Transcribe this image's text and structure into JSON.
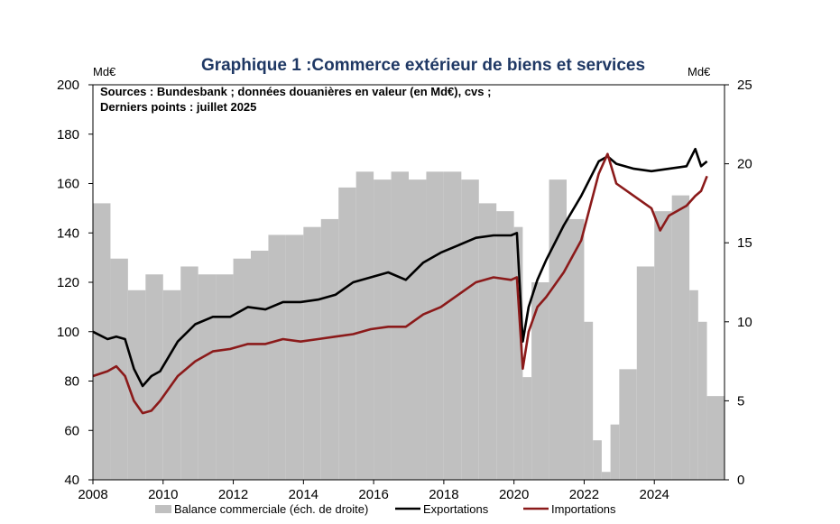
{
  "chart_data": {
    "type": "line",
    "title": "Graphique 1 :Commerce extérieur de biens et services",
    "notes": [
      "Sources : Bundesbank ; données douanières en valeur (en Md€), cvs ;",
      "Derniers points : juillet 2025"
    ],
    "ylabel_left": "Md€",
    "ylabel_right": "Md€",
    "ylim_left": [
      40,
      200
    ],
    "ylim_right": [
      0,
      25
    ],
    "yticks_left": [
      "200",
      "180",
      "160",
      "140",
      "120",
      "100",
      "80",
      "60",
      "40"
    ],
    "yticks_right": [
      "25",
      "20",
      "15",
      "10",
      "5",
      "0"
    ],
    "xticks": [
      "2008",
      "2010",
      "2012",
      "2014",
      "2016",
      "2018",
      "2020",
      "2022",
      "2024"
    ],
    "x_start": "2008-01",
    "x_end": "2025-07",
    "grid": false,
    "legend_position": "bottom",
    "colors": {
      "title": "#1f3864",
      "bars": "#c0c0c0",
      "exports": "#000000",
      "imports": "#8b1a1a"
    },
    "series": [
      {
        "name": "Balance commerciale (éch. de droite)",
        "kind": "bar",
        "axis": "right",
        "x": [
          "2008-01",
          "2008-07",
          "2009-01",
          "2009-07",
          "2010-01",
          "2010-07",
          "2011-01",
          "2011-07",
          "2012-01",
          "2012-07",
          "2013-01",
          "2013-07",
          "2014-01",
          "2014-07",
          "2015-01",
          "2015-07",
          "2016-01",
          "2016-07",
          "2017-01",
          "2017-07",
          "2018-01",
          "2018-07",
          "2019-01",
          "2019-07",
          "2020-01",
          "2020-04",
          "2020-07",
          "2021-01",
          "2021-07",
          "2022-01",
          "2022-04",
          "2022-07",
          "2022-10",
          "2023-01",
          "2023-07",
          "2024-01",
          "2024-07",
          "2025-01",
          "2025-04",
          "2025-07"
        ],
        "values": [
          17.5,
          14,
          12,
          13,
          12,
          13.5,
          13,
          13,
          14,
          14.5,
          15.5,
          15.5,
          16,
          16.5,
          18.5,
          19.5,
          19,
          19.5,
          19,
          19.5,
          19.5,
          19,
          17.5,
          17,
          16,
          6.5,
          12.5,
          19,
          16.5,
          10,
          2.5,
          0.5,
          3.5,
          7,
          13.5,
          17,
          18,
          12,
          10,
          5.3
        ]
      },
      {
        "name": "Exportations",
        "kind": "line",
        "axis": "left",
        "x": [
          "2008-01",
          "2008-06",
          "2008-09",
          "2008-12",
          "2009-03",
          "2009-06",
          "2009-09",
          "2009-12",
          "2010-06",
          "2010-12",
          "2011-06",
          "2011-12",
          "2012-06",
          "2012-12",
          "2013-06",
          "2013-12",
          "2014-06",
          "2014-12",
          "2015-06",
          "2015-12",
          "2016-06",
          "2016-12",
          "2017-06",
          "2017-12",
          "2018-06",
          "2018-12",
          "2019-06",
          "2019-12",
          "2020-02",
          "2020-04",
          "2020-06",
          "2020-09",
          "2020-12",
          "2021-06",
          "2021-12",
          "2022-06",
          "2022-09",
          "2022-12",
          "2023-06",
          "2023-12",
          "2024-06",
          "2024-12",
          "2025-03",
          "2025-05",
          "2025-07"
        ],
        "values": [
          100,
          97,
          98,
          97,
          85,
          78,
          82,
          84,
          96,
          103,
          106,
          106,
          110,
          109,
          112,
          112,
          113,
          115,
          120,
          122,
          124,
          121,
          128,
          132,
          135,
          138,
          139,
          139,
          140,
          96,
          110,
          121,
          129,
          143,
          155,
          169,
          171,
          168,
          166,
          165,
          166,
          167,
          174,
          167,
          169
        ]
      },
      {
        "name": "Importations",
        "kind": "line",
        "axis": "left",
        "x": [
          "2008-01",
          "2008-06",
          "2008-09",
          "2008-12",
          "2009-03",
          "2009-06",
          "2009-09",
          "2009-12",
          "2010-06",
          "2010-12",
          "2011-06",
          "2011-12",
          "2012-06",
          "2012-12",
          "2013-06",
          "2013-12",
          "2014-06",
          "2014-12",
          "2015-06",
          "2015-12",
          "2016-06",
          "2016-12",
          "2017-06",
          "2017-12",
          "2018-06",
          "2018-12",
          "2019-06",
          "2019-12",
          "2020-02",
          "2020-04",
          "2020-06",
          "2020-09",
          "2020-12",
          "2021-06",
          "2021-12",
          "2022-06",
          "2022-09",
          "2022-12",
          "2023-06",
          "2023-12",
          "2024-03",
          "2024-06",
          "2024-12",
          "2025-03",
          "2025-05",
          "2025-07"
        ],
        "values": [
          82,
          84,
          86,
          82,
          72,
          67,
          68,
          72,
          82,
          88,
          92,
          93,
          95,
          95,
          97,
          96,
          97,
          98,
          99,
          101,
          102,
          102,
          107,
          110,
          115,
          120,
          122,
          121,
          122,
          85,
          100,
          110,
          114,
          124,
          137,
          164,
          172,
          160,
          155,
          150,
          141,
          147,
          151,
          155,
          157,
          163
        ]
      }
    ]
  }
}
